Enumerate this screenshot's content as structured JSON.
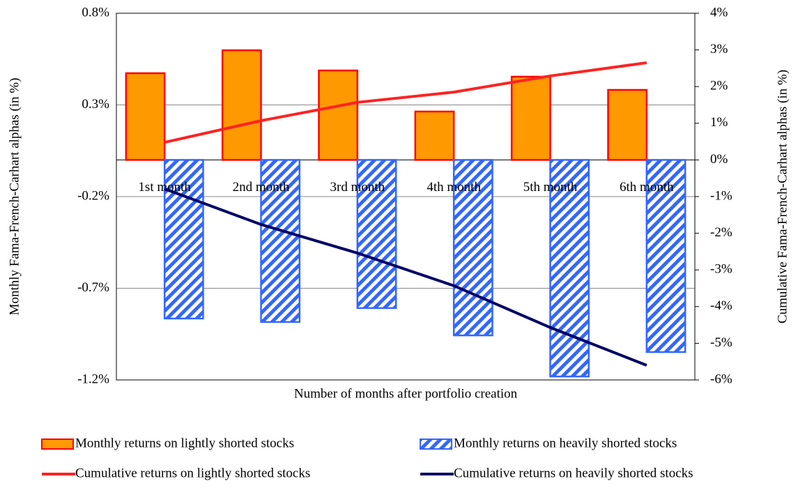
{
  "chart_data": {
    "type": "combo",
    "categories": [
      "1st month",
      "2nd month",
      "3rd month",
      "4th month",
      "5th month",
      "6th month"
    ],
    "x_label": "Number of months after portfolio creation",
    "y_label": "Monthly  Fama-French-Carhart alphas (in %)",
    "y2_label": "Cumulative  Fama-French-Carhart alphas (in %)",
    "ylim": [
      -1.2,
      0.8
    ],
    "yticks": [
      {
        "value": -1.2,
        "label": "-1.2%"
      },
      {
        "value": -0.7,
        "label": "-0.7%"
      },
      {
        "value": -0.2,
        "label": "-0.2%"
      },
      {
        "value": 0.3,
        "label": "0.3%"
      },
      {
        "value": 0.8,
        "label": "0.8%"
      }
    ],
    "y2lim": [
      -6,
      4
    ],
    "y2ticks": [
      {
        "value": -6,
        "label": "-6%"
      },
      {
        "value": -5,
        "label": "-5%"
      },
      {
        "value": -4,
        "label": "-4%"
      },
      {
        "value": -3,
        "label": "-3%"
      },
      {
        "value": -2,
        "label": "-2%"
      },
      {
        "value": -1,
        "label": "-1%"
      },
      {
        "value": 0,
        "label": "0%"
      },
      {
        "value": 1,
        "label": "1%"
      },
      {
        "value": 2,
        "label": "2%"
      },
      {
        "value": 3,
        "label": "3%"
      },
      {
        "value": 4,
        "label": "4%"
      }
    ],
    "grid": true,
    "series": [
      {
        "name": "Monthly returns on lightly shorted stocks",
        "type": "bar",
        "color": "#ff9900",
        "edge": "#ff0000",
        "values": [
          0.473,
          0.598,
          0.488,
          0.264,
          0.454,
          0.382
        ]
      },
      {
        "name": "Monthly returns on heavily shorted stocks",
        "type": "bar",
        "color": "#3366ff",
        "pattern": "hatch",
        "values": [
          -0.865,
          -0.884,
          -0.808,
          -0.957,
          -1.181,
          -1.048
        ]
      },
      {
        "name": "Cumulative returns on lightly shorted stocks",
        "type": "line",
        "axis": "y2",
        "color": "#ff2222",
        "values": [
          0.48,
          1.07,
          1.57,
          1.85,
          2.29,
          2.65
        ]
      },
      {
        "name": "Cumulative returns on heavily shorted stocks",
        "type": "line",
        "axis": "y2",
        "color": "#000066",
        "values": [
          -0.79,
          -1.76,
          -2.54,
          -3.43,
          -4.57,
          -5.6
        ]
      }
    ]
  }
}
